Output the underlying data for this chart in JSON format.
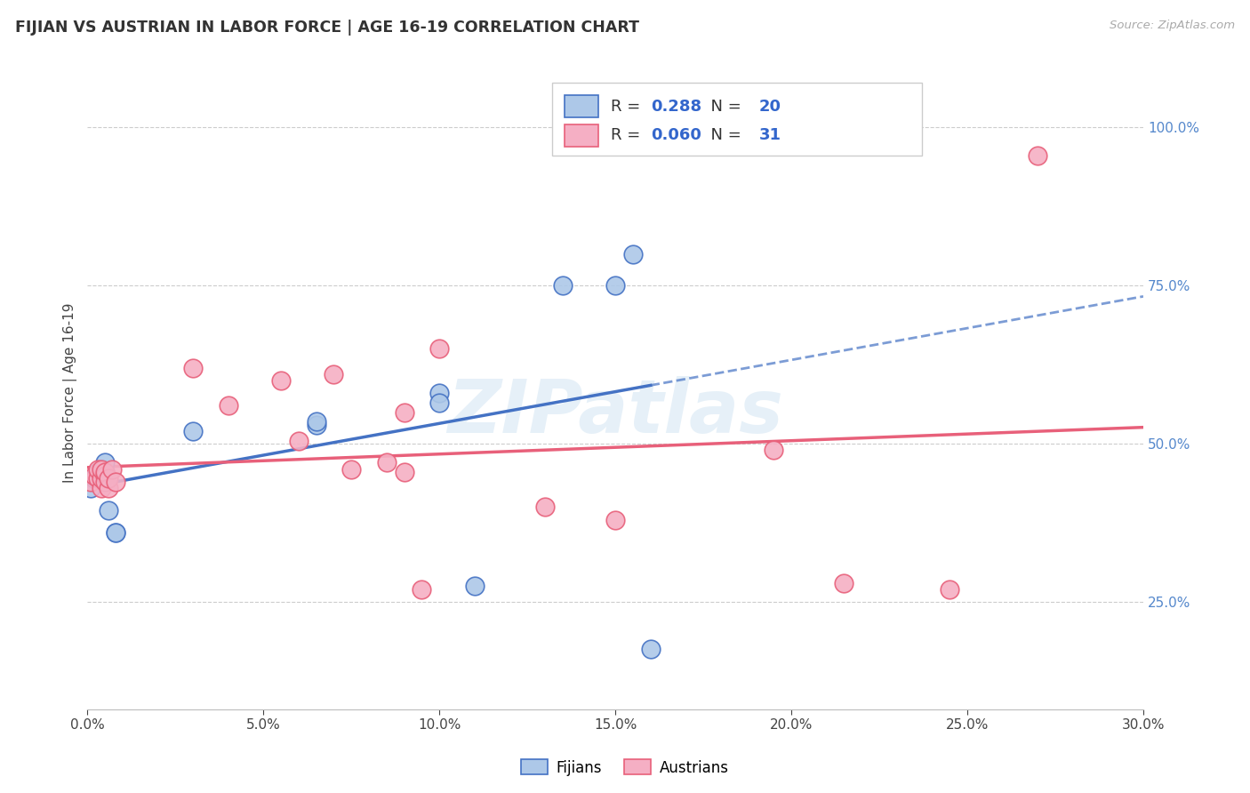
{
  "title": "FIJIAN VS AUSTRIAN IN LABOR FORCE | AGE 16-19 CORRELATION CHART",
  "source": "Source: ZipAtlas.com",
  "ylabel": "In Labor Force | Age 16-19",
  "xlim": [
    0.0,
    0.3
  ],
  "ylim": [
    0.08,
    1.08
  ],
  "xtick_labels": [
    "0.0%",
    "5.0%",
    "10.0%",
    "15.0%",
    "20.0%",
    "25.0%",
    "30.0%"
  ],
  "xtick_values": [
    0.0,
    0.05,
    0.1,
    0.15,
    0.2,
    0.25,
    0.3
  ],
  "ytick_labels": [
    "25.0%",
    "50.0%",
    "75.0%",
    "100.0%"
  ],
  "ytick_values": [
    0.25,
    0.5,
    0.75,
    1.0
  ],
  "fijian_color": "#adc8e8",
  "austrian_color": "#f5afc4",
  "fijian_line_color": "#4472c4",
  "austrian_line_color": "#e8607a",
  "R_fijian": 0.288,
  "N_fijian": 20,
  "R_austrian": 0.06,
  "N_austrian": 31,
  "fijian_x": [
    0.001,
    0.002,
    0.003,
    0.004,
    0.004,
    0.005,
    0.005,
    0.006,
    0.008,
    0.008,
    0.03,
    0.065,
    0.065,
    0.1,
    0.1,
    0.11,
    0.135,
    0.15,
    0.155,
    0.16
  ],
  "fijian_y": [
    0.43,
    0.445,
    0.455,
    0.445,
    0.46,
    0.455,
    0.47,
    0.395,
    0.36,
    0.36,
    0.52,
    0.53,
    0.535,
    0.58,
    0.565,
    0.275,
    0.75,
    0.75,
    0.8,
    0.175
  ],
  "austrian_x": [
    0.001,
    0.002,
    0.003,
    0.003,
    0.004,
    0.004,
    0.004,
    0.005,
    0.005,
    0.005,
    0.006,
    0.006,
    0.007,
    0.008,
    0.03,
    0.04,
    0.055,
    0.06,
    0.07,
    0.075,
    0.085,
    0.09,
    0.09,
    0.095,
    0.1,
    0.13,
    0.15,
    0.195,
    0.215,
    0.245,
    0.27
  ],
  "austrian_y": [
    0.44,
    0.45,
    0.445,
    0.46,
    0.43,
    0.445,
    0.46,
    0.45,
    0.44,
    0.455,
    0.43,
    0.445,
    0.46,
    0.44,
    0.62,
    0.56,
    0.6,
    0.505,
    0.61,
    0.46,
    0.47,
    0.55,
    0.455,
    0.27,
    0.65,
    0.4,
    0.38,
    0.49,
    0.28,
    0.27,
    0.955
  ],
  "background_color": "#ffffff",
  "grid_color": "#cccccc",
  "watermark": "ZIPatlas",
  "legend_fijian_label": "Fijians",
  "legend_austrian_label": "Austrians"
}
